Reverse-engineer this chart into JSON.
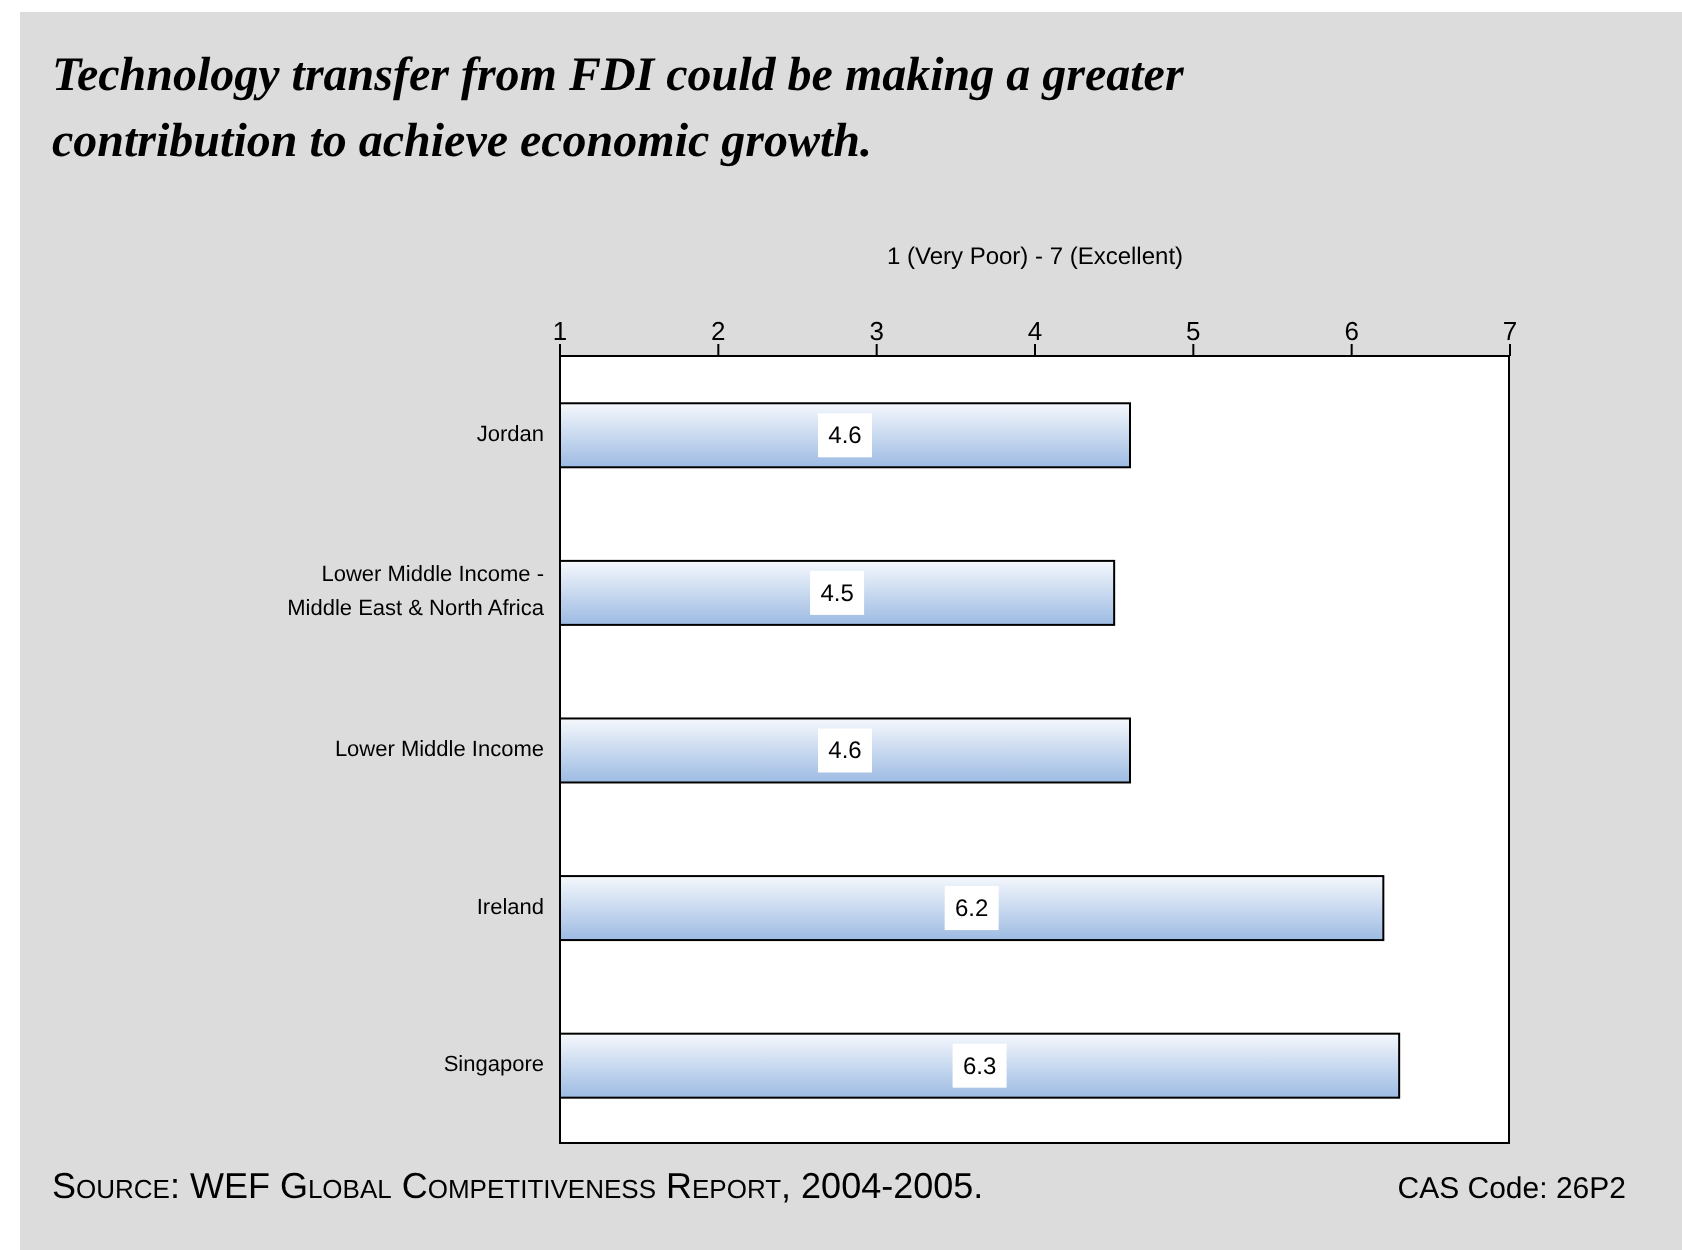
{
  "chart_data": {
    "type": "bar",
    "orientation": "horizontal",
    "title": "Technology transfer from FDI could be making a greater contribution to achieve economic growth.",
    "xlabel": "1 (Very Poor) - 7 (Excellent)",
    "categories": [
      "Jordan",
      "Lower Middle Income -\nMiddle East &  North Africa",
      "Lower Middle Income",
      "Ireland",
      "Singapore"
    ],
    "values": [
      4.6,
      4.5,
      4.6,
      6.2,
      6.3
    ],
    "color": "#9dbbe3",
    "data_labels": true,
    "xlim": [
      1,
      7
    ],
    "xticks": [
      1,
      2,
      3,
      4,
      5,
      6,
      7
    ],
    "annotations": [
      "Source: WEF Global Competitiveness Report, 2004-2005.",
      "CAS Code: 26P2"
    ]
  }
}
